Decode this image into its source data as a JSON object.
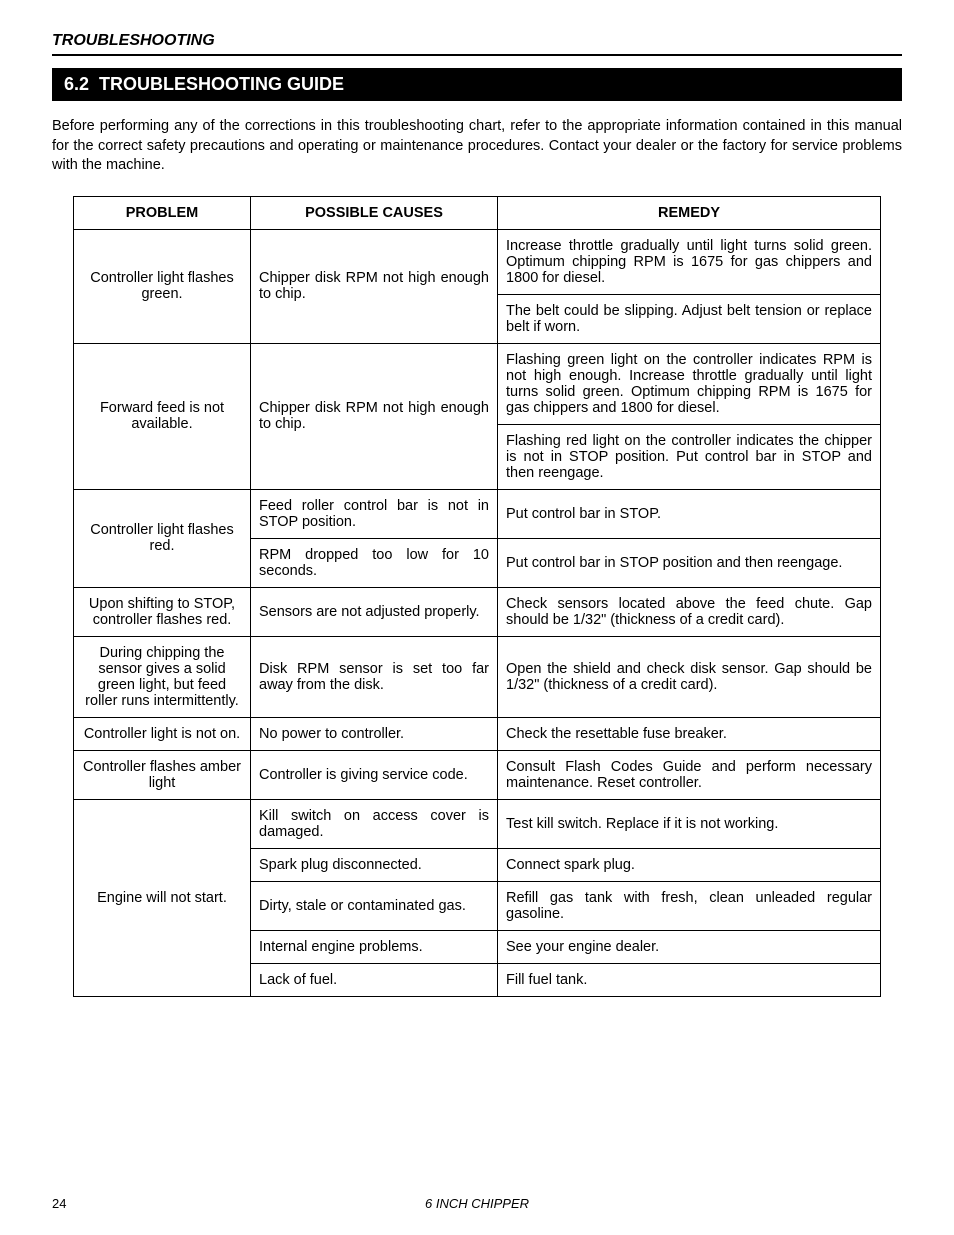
{
  "header": {
    "title": "TROUBLESHOOTING"
  },
  "section": {
    "number": "6.2",
    "title": "TROUBLESHOOTING GUIDE"
  },
  "intro": "Before performing any of the corrections in this troubleshooting chart, refer to the appropriate information contained in this manual for the correct safety precautions and operating or maintenance procedures.  Contact your dealer or the factory for service problems with the machine.",
  "table": {
    "columns": [
      "PROBLEM",
      "POSSIBLE CAUSES",
      "REMEDY"
    ],
    "rows": [
      {
        "problem": "Controller light flashes green.",
        "cause": "Chipper disk RPM not high enough to chip.",
        "remedy": "Increase throttle gradually until light turns solid green. Optimum chipping RPM is 1675 for gas chippers and 1800 for diesel.",
        "problem_rowspan": 2,
        "cause_rowspan": 2
      },
      {
        "remedy": "The belt could be slipping. Adjust belt tension or replace belt if worn."
      },
      {
        "problem": "Forward feed is not available.",
        "cause": "Chipper disk RPM not high enough to chip.",
        "remedy": "Flashing green light on the controller indicates RPM is not high enough. Increase throttle gradually until light turns solid green. Optimum chipping RPM is 1675 for gas chippers and 1800 for diesel.",
        "problem_rowspan": 2,
        "cause_rowspan": 2
      },
      {
        "remedy": "Flashing red light on the controller indicates the chipper is not in STOP position. Put control bar in STOP and then reengage."
      },
      {
        "problem": "Controller light flashes red.",
        "cause": "Feed roller control bar is not in STOP position.",
        "remedy": "Put control bar in STOP.",
        "problem_rowspan": 2
      },
      {
        "cause": "RPM dropped too low for 10 seconds.",
        "remedy": "Put control bar in STOP position and then reengage."
      },
      {
        "problem": "Upon shifting to STOP, controller flashes red.",
        "cause": "Sensors are not adjusted properly.",
        "remedy": "Check sensors located above the feed chute. Gap should be 1/32\" (thickness of a credit card)."
      },
      {
        "problem": "During chipping the sensor gives a solid green light, but feed roller runs intermittently.",
        "cause": "Disk RPM sensor is set too far away from the disk.",
        "remedy": "Open the shield and check disk sensor. Gap should be 1/32\"  (thickness of a credit card)."
      },
      {
        "problem": "Controller light is not on.",
        "cause": "No power to controller.",
        "remedy": "Check the resettable fuse breaker."
      },
      {
        "problem": "Controller flashes amber light",
        "cause": "Controller is giving service code.",
        "remedy": "Consult Flash Codes Guide and perform necessary maintenance. Reset controller."
      },
      {
        "problem": "Engine will not start.",
        "cause": "Kill switch on access cover is damaged.",
        "remedy": "Test kill switch. Replace if it is not working.",
        "problem_rowspan": 5
      },
      {
        "cause": "Spark plug disconnected.",
        "remedy": "Connect spark plug."
      },
      {
        "cause": "Dirty, stale or contaminated gas.",
        "remedy": "Refill gas tank with fresh, clean unleaded regular gasoline."
      },
      {
        "cause": "Internal engine problems.",
        "remedy": "See your engine dealer."
      },
      {
        "cause": "Lack of fuel.",
        "remedy": "Fill fuel tank."
      }
    ]
  },
  "footer": {
    "page": "24",
    "doc": "6 INCH CHIPPER"
  }
}
